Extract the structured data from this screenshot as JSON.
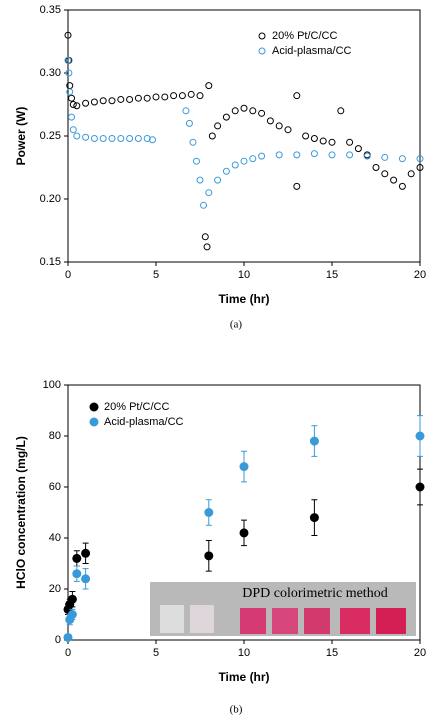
{
  "chart_data": [
    {
      "type": "scatter",
      "caption": "(a)",
      "x_label": "Time (hr)",
      "y_label": "Power (W)",
      "xlim": [
        0,
        20
      ],
      "ylim": [
        0.15,
        0.35
      ],
      "xticks": [
        0,
        5,
        10,
        15,
        20
      ],
      "yticks": [
        0.15,
        {
          "value": 0.2,
          "label": "0.20"
        },
        0.25,
        {
          "value": 0.3,
          "label": "0.30"
        },
        0.35
      ],
      "legend": "upper right",
      "series": [
        {
          "name": "20% Pt/C/CC",
          "color": "#000000",
          "filled": false,
          "x": [
            0,
            0.05,
            0.1,
            0.2,
            0.3,
            0.5,
            1,
            1.5,
            2,
            2.5,
            3,
            3.5,
            4,
            4.5,
            5,
            5.5,
            6,
            6.5,
            7,
            7.5,
            7.8,
            7.9,
            8,
            8.2,
            8.5,
            9,
            9.5,
            10,
            10.5,
            11,
            11.5,
            12,
            12.5,
            13,
            13,
            13.5,
            14,
            14.5,
            15,
            15.5,
            16,
            16.5,
            17,
            17.5,
            18,
            18.5,
            19,
            19.5,
            20
          ],
          "values": [
            0.33,
            0.31,
            0.29,
            0.28,
            0.275,
            0.274,
            0.276,
            0.277,
            0.278,
            0.278,
            0.279,
            0.279,
            0.28,
            0.28,
            0.281,
            0.281,
            0.282,
            0.282,
            0.283,
            0.282,
            0.17,
            0.162,
            0.29,
            0.25,
            0.258,
            0.265,
            0.27,
            0.272,
            0.27,
            0.268,
            0.262,
            0.258,
            0.255,
            0.282,
            0.21,
            0.25,
            0.248,
            0.246,
            0.245,
            0.27,
            0.245,
            0.24,
            0.235,
            0.225,
            0.22,
            0.215,
            0.21,
            0.22,
            0.225
          ]
        },
        {
          "name": "Acid-plasma/CC",
          "color": "#3a9ad9",
          "filled": false,
          "x": [
            0,
            0.05,
            0.1,
            0.2,
            0.3,
            0.5,
            1,
            1.5,
            2,
            2.5,
            3,
            3.5,
            4,
            4.5,
            4.8,
            6.7,
            6.9,
            7.1,
            7.3,
            7.5,
            7.7,
            8,
            8.5,
            9,
            9.5,
            10,
            10.5,
            11,
            12,
            13,
            14,
            15,
            16,
            17,
            18,
            19,
            20
          ],
          "values": [
            0.31,
            0.3,
            0.285,
            0.265,
            0.255,
            0.25,
            0.249,
            0.248,
            0.248,
            0.248,
            0.248,
            0.248,
            0.248,
            0.248,
            0.247,
            0.27,
            0.26,
            0.245,
            0.23,
            0.215,
            0.195,
            0.205,
            0.215,
            0.222,
            0.227,
            0.23,
            0.232,
            0.234,
            0.235,
            0.235,
            0.236,
            0.235,
            0.235,
            0.234,
            0.233,
            0.232,
            0.232
          ]
        }
      ]
    },
    {
      "type": "scatter",
      "caption": "(b)",
      "x_label": "Time (hr)",
      "y_label": "HClO concentration (mg/L)",
      "annotation": "DPD colorimetric method",
      "xlim": [
        0,
        20
      ],
      "ylim": [
        0,
        100
      ],
      "xticks": [
        0,
        5,
        10,
        15,
        20
      ],
      "yticks": [
        0,
        20,
        40,
        60,
        80,
        100
      ],
      "legend": "upper left",
      "series": [
        {
          "name": "20% Pt/C/CC",
          "color": "#000000",
          "filled": true,
          "x": [
            0,
            0.1,
            0.25,
            0.5,
            1,
            8,
            10,
            14,
            20
          ],
          "values": [
            12,
            14,
            16,
            32,
            34,
            33,
            42,
            48,
            60
          ],
          "errors": [
            2,
            2,
            3,
            3,
            4,
            6,
            5,
            7,
            7
          ]
        },
        {
          "name": "Acid-plasma/CC",
          "color": "#3a9ad9",
          "filled": true,
          "x": [
            0,
            0.1,
            0.25,
            0.5,
            1,
            8,
            10,
            14,
            20
          ],
          "values": [
            1,
            8,
            10,
            26,
            24,
            50,
            68,
            78,
            80
          ],
          "errors": [
            1,
            2,
            2,
            3,
            4,
            5,
            6,
            6,
            8
          ]
        }
      ]
    }
  ]
}
